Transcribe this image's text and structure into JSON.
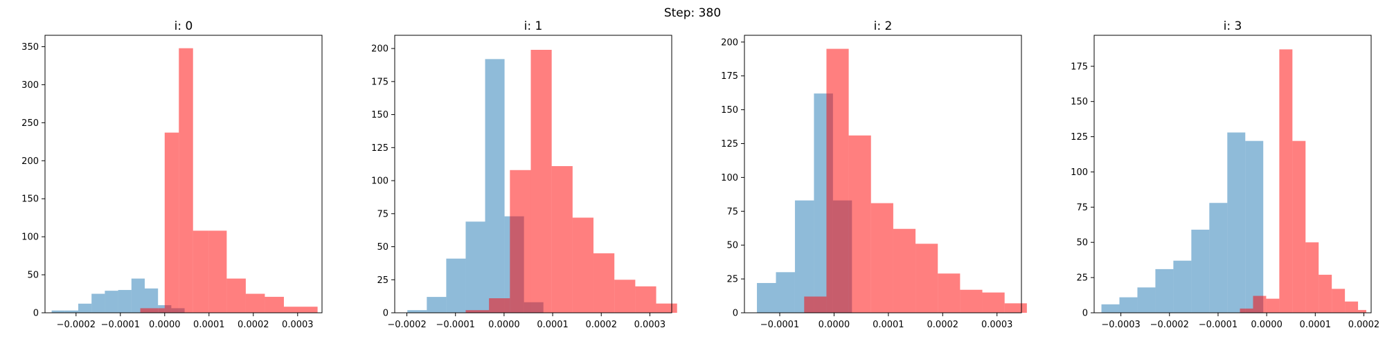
{
  "figure": {
    "suptitle": "Step: 380",
    "colors": {
      "blue": "#1f77b4",
      "red": "#ff0000"
    },
    "alpha": {
      "blue": 0.5,
      "red": 0.5
    }
  },
  "chart_data": [
    {
      "type": "bar",
      "title": "i: 0",
      "xlim": [
        -0.00027,
        0.000355
      ],
      "ylim": [
        0,
        365
      ],
      "xticks": [
        -0.0002,
        -0.0001,
        0.0,
        0.0001,
        0.0002,
        0.0003
      ],
      "xtick_labels": [
        "−0.0002",
        "−0.0001",
        "0.0000",
        "0.0001",
        "0.0002",
        "0.0003"
      ],
      "yticks": [
        0,
        50,
        100,
        150,
        200,
        250,
        300,
        350
      ],
      "ytick_labels": [
        "0",
        "50",
        "100",
        "150",
        "200",
        "250",
        "300",
        "350"
      ],
      "series": [
        {
          "color": "blue",
          "bin_edges": [
            -0.000255,
            -0.000225,
            -0.000195,
            -0.000165,
            -0.000135,
            -0.000105,
            -7.5e-05,
            -4.5e-05,
            -1.5e-05,
            1.5e-05,
            4.5e-05
          ],
          "counts": [
            3,
            3,
            12,
            25,
            29,
            30,
            45,
            32,
            10,
            6
          ]
        },
        {
          "color": "red",
          "bin_edges": [
            -5.5e-05,
            -1.5e-05,
            0.0,
            3.2e-05,
            6.4e-05,
            0.0001,
            0.00014,
            0.000183,
            0.000226,
            0.000269,
            0.000312,
            0.000345
          ],
          "counts": [
            6,
            6,
            237,
            348,
            108,
            108,
            45,
            25,
            21,
            8,
            8
          ]
        }
      ]
    },
    {
      "type": "bar",
      "title": "i: 1",
      "xlim": [
        -0.000225,
        0.000345
      ],
      "ylim": [
        0,
        210
      ],
      "xticks": [
        -0.0002,
        -0.0001,
        0.0,
        0.0001,
        0.0002,
        0.0003
      ],
      "xtick_labels": [
        "−0.0002",
        "−0.0001",
        "0.0000",
        "0.0001",
        "0.0002",
        "0.0003"
      ],
      "yticks": [
        0,
        25,
        50,
        75,
        100,
        125,
        150,
        175,
        200
      ],
      "ytick_labels": [
        "0",
        "25",
        "50",
        "75",
        "100",
        "125",
        "150",
        "175",
        "200"
      ],
      "series": [
        {
          "color": "blue",
          "bin_edges": [
            -0.000199,
            -0.000159,
            -0.000119,
            -7.9e-05,
            -3.9e-05,
            1e-06,
            4.1e-05,
            8.1e-05
          ],
          "counts": [
            2,
            12,
            41,
            69,
            192,
            73,
            8
          ]
        },
        {
          "color": "red",
          "bin_edges": [
            -7.9e-05,
            -3.1e-05,
            1.2e-05,
            5.5e-05,
            9.8e-05,
            0.000141,
            0.000184,
            0.000227,
            0.00027,
            0.000313,
            0.000356
          ],
          "counts": [
            2,
            11,
            108,
            199,
            111,
            72,
            45,
            25,
            20,
            7
          ]
        }
      ]
    },
    {
      "type": "bar",
      "title": "i: 2",
      "xlim": [
        -0.000165,
        0.000345
      ],
      "ylim": [
        0,
        205
      ],
      "xticks": [
        -0.0001,
        0.0,
        0.0001,
        0.0002,
        0.0003
      ],
      "xtick_labels": [
        "−0.0001",
        "0.0000",
        "0.0001",
        "0.0002",
        "0.0003"
      ],
      "yticks": [
        0,
        25,
        50,
        75,
        100,
        125,
        150,
        175,
        200
      ],
      "ytick_labels": [
        "0",
        "25",
        "50",
        "75",
        "100",
        "125",
        "150",
        "175",
        "200"
      ],
      "series": [
        {
          "color": "blue",
          "bin_edges": [
            -0.000142,
            -0.000107,
            -7.2e-05,
            -3.7e-05,
            -2e-06,
            3.3e-05
          ],
          "counts": [
            22,
            30,
            83,
            162,
            83
          ]
        },
        {
          "color": "red",
          "bin_edges": [
            -5.5e-05,
            -1.4e-05,
            2.7e-05,
            6.8e-05,
            0.000109,
            0.00015,
            0.000191,
            0.000232,
            0.000273,
            0.000314,
            0.000355
          ],
          "counts": [
            12,
            195,
            131,
            81,
            62,
            51,
            29,
            17,
            15,
            7
          ]
        }
      ]
    },
    {
      "type": "bar",
      "title": "i: 3",
      "xlim": [
        -0.000355,
        0.000215
      ],
      "ylim": [
        0,
        197
      ],
      "xticks": [
        -0.0003,
        -0.0002,
        -0.0001,
        0.0,
        0.0001,
        0.0002
      ],
      "xtick_labels": [
        "−0.0003",
        "−0.0002",
        "−0.0001",
        "0.0000",
        "0.0001",
        "0.0002"
      ],
      "yticks": [
        0,
        25,
        50,
        75,
        100,
        125,
        150,
        175
      ],
      "ytick_labels": [
        "0",
        "25",
        "50",
        "75",
        "100",
        "125",
        "150",
        "175"
      ],
      "series": [
        {
          "color": "blue",
          "bin_edges": [
            -0.00034,
            -0.000303,
            -0.000266,
            -0.000229,
            -0.000192,
            -0.000155,
            -0.000118,
            -8.1e-05,
            -4.4e-05,
            -7e-06
          ],
          "counts": [
            6,
            11,
            18,
            31,
            37,
            59,
            78,
            128,
            122
          ]
        },
        {
          "color": "red",
          "bin_edges": [
            -5.5e-05,
            -2.8e-05,
            -1e-06,
            2.6e-05,
            5.3e-05,
            8e-05,
            0.000107,
            0.000134,
            0.000161,
            0.000188,
            0.000205
          ],
          "counts": [
            3,
            12,
            10,
            187,
            122,
            50,
            27,
            17,
            8,
            2
          ]
        }
      ]
    }
  ]
}
